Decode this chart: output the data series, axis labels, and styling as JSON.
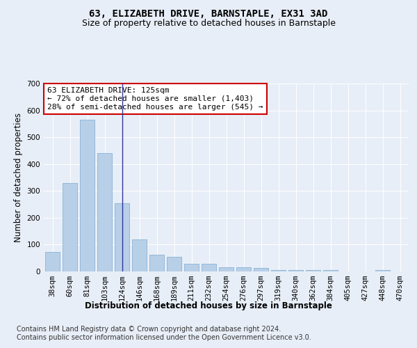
{
  "title": "63, ELIZABETH DRIVE, BARNSTAPLE, EX31 3AD",
  "subtitle": "Size of property relative to detached houses in Barnstaple",
  "xlabel": "Distribution of detached houses by size in Barnstaple",
  "ylabel": "Number of detached properties",
  "categories": [
    "38sqm",
    "60sqm",
    "81sqm",
    "103sqm",
    "124sqm",
    "146sqm",
    "168sqm",
    "189sqm",
    "211sqm",
    "232sqm",
    "254sqm",
    "276sqm",
    "297sqm",
    "319sqm",
    "340sqm",
    "362sqm",
    "384sqm",
    "405sqm",
    "427sqm",
    "448sqm",
    "470sqm"
  ],
  "values": [
    72,
    330,
    565,
    440,
    255,
    120,
    63,
    55,
    28,
    28,
    15,
    15,
    12,
    4,
    4,
    4,
    4,
    0,
    0,
    5,
    0
  ],
  "bar_color": "#b8cfe8",
  "bar_edge_color": "#7aaad0",
  "vline_x_index": 4,
  "vline_color": "#333399",
  "annotation_text": "63 ELIZABETH DRIVE: 125sqm\n← 72% of detached houses are smaller (1,403)\n28% of semi-detached houses are larger (545) →",
  "annotation_box_color": "#ffffff",
  "annotation_box_edge_color": "#cc0000",
  "ylim": [
    0,
    700
  ],
  "yticks": [
    0,
    100,
    200,
    300,
    400,
    500,
    600,
    700
  ],
  "background_color": "#e8eef7",
  "plot_background_color": "#e8eef7",
  "footer_line1": "Contains HM Land Registry data © Crown copyright and database right 2024.",
  "footer_line2": "Contains public sector information licensed under the Open Government Licence v3.0.",
  "title_fontsize": 10,
  "subtitle_fontsize": 9,
  "axis_label_fontsize": 8.5,
  "tick_fontsize": 7.5,
  "annotation_fontsize": 8,
  "footer_fontsize": 7
}
